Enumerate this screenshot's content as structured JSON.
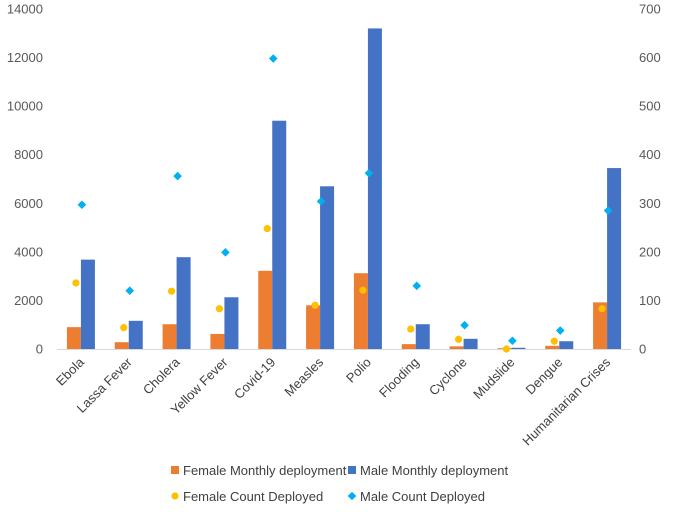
{
  "chart_data": {
    "type": "bar",
    "title": "",
    "categories": [
      "Ebola",
      "Lassa Fever",
      "Cholera",
      "Yellow Fever",
      "Covid-19",
      "Measles",
      "Polio",
      "Flooding",
      "Cyclone",
      "Mudslide",
      "Dengue",
      "Humanitarian Crises"
    ],
    "series": [
      {
        "name": "Female Monthly deployment",
        "kind": "bar",
        "axis": "left",
        "color": "#ED7D31",
        "values": [
          900,
          280,
          1020,
          620,
          3220,
          1800,
          3120,
          200,
          110,
          20,
          130,
          1920
        ]
      },
      {
        "name": "Male Monthly deployment",
        "kind": "bar",
        "axis": "left",
        "color": "#4472C4",
        "values": [
          3680,
          1160,
          3780,
          2130,
          9400,
          6700,
          13200,
          1020,
          420,
          50,
          320,
          7450
        ]
      },
      {
        "name": "Female Count  Deployed",
        "kind": "point",
        "marker": "circle",
        "axis": "right",
        "color": "#FFC000",
        "values": [
          136,
          44,
          119,
          83,
          248,
          90,
          121,
          41,
          20,
          0,
          16,
          83
        ]
      },
      {
        "name": "Male Count Deployed",
        "kind": "point",
        "marker": "diamond",
        "axis": "right",
        "color": "#00B0F0",
        "values": [
          297,
          120,
          356,
          199,
          598,
          304,
          362,
          130,
          49,
          17,
          38,
          285
        ]
      }
    ],
    "y_left": {
      "min": 0,
      "max": 14000,
      "ticks": [
        "0",
        "2000",
        "4000",
        "6000",
        "8000",
        "10000",
        "12000",
        "14000"
      ]
    },
    "y_right": {
      "min": 0,
      "max": 700,
      "ticks": [
        "0",
        "100",
        "200",
        "300",
        "400",
        "500",
        "600",
        "700"
      ]
    },
    "xlabel": "",
    "ylabel": "",
    "grid": false,
    "legend": {
      "position": "bottom",
      "rows": [
        [
          "Female Monthly deployment",
          "Male Monthly deployment"
        ],
        [
          "Female Count  Deployed",
          "Male Count Deployed"
        ]
      ]
    }
  }
}
